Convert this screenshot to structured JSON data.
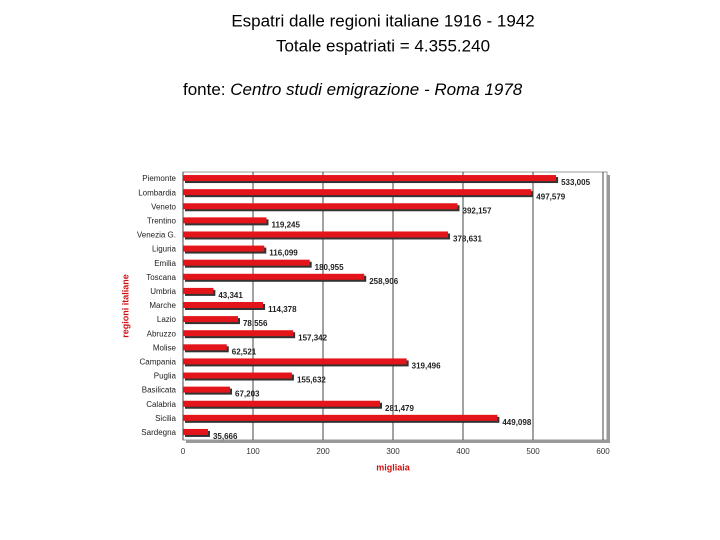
{
  "title": "Espatri dalle regioni italiane 1916 - 1942",
  "subtitle": "Totale espatriati = 4.355.240",
  "source_label": "fonte:",
  "source": "Centro studi emigrazione - Roma 1978",
  "chart_data": {
    "type": "bar",
    "orientation": "horizontal",
    "categories": [
      "Piemonte",
      "Lombardia",
      "Veneto",
      "Trentino",
      "Venezia G.",
      "Liguria",
      "Emilia",
      "Toscana",
      "Umbria",
      "Marche",
      "Lazio",
      "Abruzzo",
      "Molise",
      "Campania",
      "Puglia",
      "Basilicata",
      "Calabria",
      "Sicilia",
      "Sardegna"
    ],
    "values": [
      533.005,
      497.579,
      392.157,
      119.245,
      378.631,
      116.099,
      180.955,
      258.906,
      43.341,
      114.378,
      78.556,
      157.342,
      62.521,
      319.496,
      155.632,
      67.203,
      281.479,
      449.098,
      35.666
    ],
    "value_labels": [
      "533,005",
      "497,579",
      "392,157",
      "119,245",
      "378,631",
      "116,099",
      "180,955",
      "258,906",
      "43,341",
      "114,378",
      "78,556",
      "157,342",
      "62,521",
      "319,496",
      "155,632",
      "67,203",
      "281,479",
      "449,098",
      "35,666"
    ],
    "color": "#e3151b",
    "xlim": [
      0,
      600
    ],
    "xticks": [
      0,
      100,
      200,
      300,
      400,
      500,
      600
    ],
    "xlabel": "migliaia",
    "ylabel": "regioni italiane",
    "grid": true
  }
}
